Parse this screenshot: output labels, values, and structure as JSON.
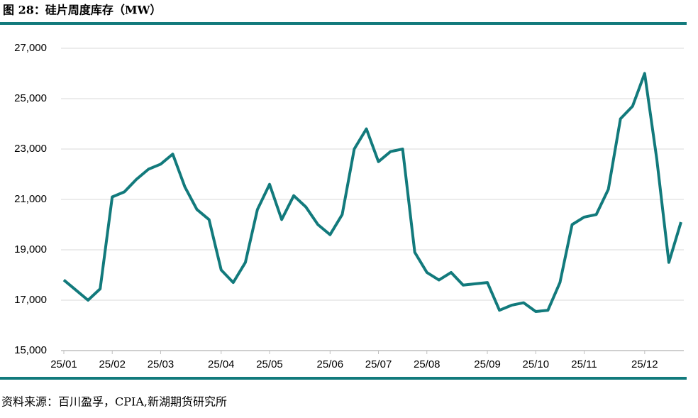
{
  "chart_data": {
    "type": "line",
    "title": "图 28：硅片周度库存（MW）",
    "source": "资料来源：百川盈孚，CPIA,新湖期货研究所",
    "categories": [
      "25/01",
      null,
      null,
      null,
      "25/02",
      null,
      null,
      null,
      "25/03",
      null,
      null,
      null,
      null,
      "25/04",
      null,
      null,
      null,
      "25/05",
      null,
      null,
      null,
      null,
      "25/06",
      null,
      null,
      null,
      "25/07",
      null,
      null,
      null,
      "25/08",
      null,
      null,
      null,
      null,
      "25/09",
      null,
      null,
      null,
      "25/10",
      null,
      null,
      null,
      "25/11",
      null,
      null,
      null,
      null,
      "25/12",
      null,
      null,
      null
    ],
    "values": [
      17800,
      17400,
      17000,
      17450,
      21100,
      21300,
      21800,
      22200,
      22400,
      22800,
      21500,
      20600,
      20200,
      18200,
      17700,
      18500,
      20600,
      21600,
      20200,
      21150,
      20700,
      20000,
      19600,
      20400,
      23000,
      23800,
      22500,
      22900,
      23000,
      18900,
      18100,
      17800,
      18100,
      17600,
      17650,
      17700,
      16600,
      16800,
      16900,
      16550,
      16600,
      17700,
      20000,
      20300,
      20400,
      21400,
      24200,
      24700,
      26000,
      22600,
      18500,
      20100
    ],
    "color": "#127a7c",
    "ylim": [
      15000,
      27000
    ],
    "yticks": [
      {
        "value": 15000,
        "label": "15,000"
      },
      {
        "value": 17000,
        "label": "17,000"
      },
      {
        "value": 19000,
        "label": "19,000"
      },
      {
        "value": 21000,
        "label": "21,000"
      },
      {
        "value": 23000,
        "label": "23,000"
      },
      {
        "value": 25000,
        "label": "25,000"
      },
      {
        "value": 27000,
        "label": "27,000"
      }
    ],
    "grid": true
  }
}
